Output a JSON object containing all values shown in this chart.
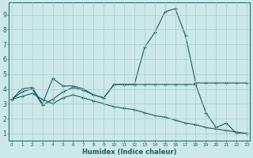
{
  "xlabel": "Humidex (Indice chaleur)",
  "background_color": "#cce8e8",
  "grid_color": "#aacccc",
  "line_color": "#1a5c5c",
  "x_ticks": [
    0,
    1,
    2,
    3,
    4,
    5,
    6,
    7,
    8,
    9,
    10,
    11,
    12,
    13,
    14,
    15,
    16,
    17,
    18,
    19,
    20,
    21,
    22,
    23
  ],
  "y_ticks": [
    1,
    2,
    3,
    4,
    5,
    6,
    7,
    8,
    9
  ],
  "xlim": [
    -0.3,
    23.3
  ],
  "ylim": [
    0.5,
    9.8
  ],
  "series1_x": [
    0,
    1,
    2,
    3,
    4,
    5,
    6,
    7,
    8,
    9,
    10,
    11,
    12,
    13,
    14,
    15,
    16,
    17,
    18,
    19,
    20,
    21,
    22,
    23
  ],
  "series1_y": [
    3.3,
    4.0,
    4.1,
    3.0,
    4.7,
    4.2,
    4.2,
    4.0,
    3.6,
    3.4,
    4.3,
    4.3,
    4.3,
    6.8,
    7.8,
    9.2,
    9.4,
    7.6,
    4.4,
    4.4,
    4.4,
    4.4,
    4.4,
    4.4
  ],
  "series2_x": [
    0,
    1,
    2,
    3,
    4,
    5,
    6,
    7,
    8,
    9,
    10,
    11,
    12,
    13,
    14,
    15,
    16,
    17,
    18,
    19,
    20,
    21,
    22,
    23
  ],
  "series2_y": [
    3.3,
    3.8,
    4.0,
    2.9,
    3.3,
    3.8,
    4.1,
    3.9,
    3.6,
    3.4,
    4.3,
    4.3,
    4.3,
    4.3,
    4.3,
    4.3,
    4.3,
    4.3,
    4.3,
    2.4,
    1.4,
    1.7,
    1.0,
    1.0
  ],
  "series3_x": [
    0,
    1,
    2,
    3,
    4,
    5,
    6,
    7,
    8,
    9,
    10,
    11,
    12,
    13,
    14,
    15,
    16,
    17,
    18,
    19,
    20,
    21,
    22,
    23
  ],
  "series3_y": [
    3.3,
    3.5,
    3.7,
    3.3,
    3.0,
    3.4,
    3.6,
    3.4,
    3.2,
    3.0,
    2.8,
    2.7,
    2.6,
    2.4,
    2.2,
    2.1,
    1.9,
    1.7,
    1.6,
    1.4,
    1.3,
    1.2,
    1.1,
    1.0
  ]
}
